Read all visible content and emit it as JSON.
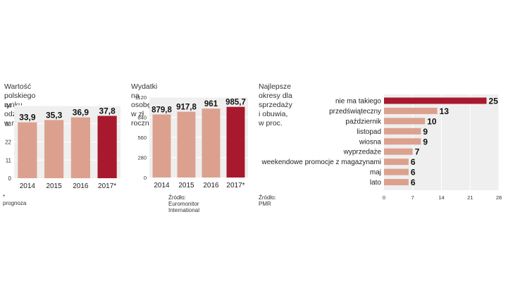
{
  "colors": {
    "bar": "#dca18e",
    "highlight": "#a8192e",
    "plot_bg": "#efefef",
    "grid": "#ffffff"
  },
  "chart_data": [
    {
      "type": "bar",
      "title": "Wartość polskiego rynku odzieżowego, w mld zł",
      "title_lines": [
        "Wartość polskiego rynku",
        "odzieżowego, w mld zł"
      ],
      "categories": [
        "2014",
        "2015",
        "2016",
        "2017*"
      ],
      "values": [
        33.9,
        35.3,
        36.9,
        37.8
      ],
      "value_labels": [
        "33,9",
        "35,3",
        "36,9",
        "37,8"
      ],
      "highlight_index": 3,
      "yticks": [
        "0",
        "11",
        "22",
        "33",
        "44"
      ],
      "ylim": [
        0,
        44
      ],
      "grid": true,
      "note": "* prognoza"
    },
    {
      "type": "bar",
      "title": "Wydatki na osobę, w zł rocznie",
      "categories": [
        "2014",
        "2015",
        "2016",
        "2017*"
      ],
      "values": [
        879.8,
        917.8,
        961,
        985.7
      ],
      "value_labels": [
        "879,8",
        "917,8",
        "961",
        "985,7"
      ],
      "highlight_index": 3,
      "yticks": [
        "0",
        "280",
        "560",
        "840",
        "1120"
      ],
      "ylim": [
        0,
        1120
      ],
      "grid": true,
      "source": "Źródło: Euromonitor International"
    },
    {
      "type": "bar",
      "orientation": "horizontal",
      "title": "Najlepsze okresy dla sprzedaży i obuwia, w proc.",
      "categories": [
        "nie ma takiego",
        "przedświąteczny",
        "październik",
        "listopad",
        "wiosna",
        "wyprzedaże",
        "weekendowe promocje z magazynami",
        "maj",
        "lato"
      ],
      "values": [
        25,
        13,
        10,
        9,
        9,
        7,
        6,
        6,
        6
      ],
      "value_labels": [
        "25",
        "13",
        "10",
        "9",
        "9",
        "7",
        "6",
        "6",
        "6"
      ],
      "highlight_index": 0,
      "xticks": [
        "0",
        "7",
        "14",
        "21",
        "28"
      ],
      "xlim": [
        0,
        28
      ],
      "grid": true,
      "source": "Źródło: PMR"
    }
  ]
}
